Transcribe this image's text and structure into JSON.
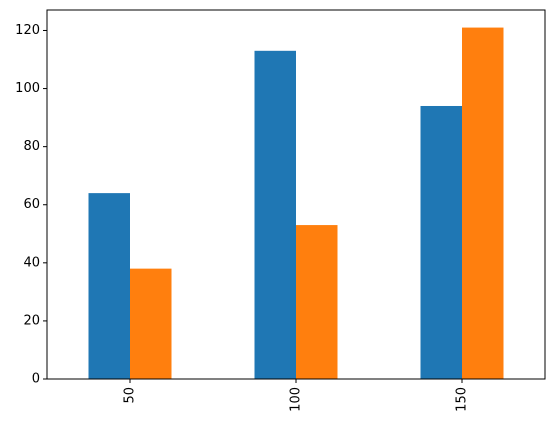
{
  "chart_data": {
    "type": "bar",
    "categories": [
      "50",
      "100",
      "150"
    ],
    "series": [
      {
        "color": "#1f77b4",
        "values": [
          64,
          113,
          94
        ]
      },
      {
        "color": "#ff7f0e",
        "values": [
          38,
          53,
          121
        ]
      }
    ],
    "ylim": [
      0,
      127.05
    ],
    "yticks": [
      0,
      20,
      40,
      60,
      80,
      100,
      120
    ]
  }
}
